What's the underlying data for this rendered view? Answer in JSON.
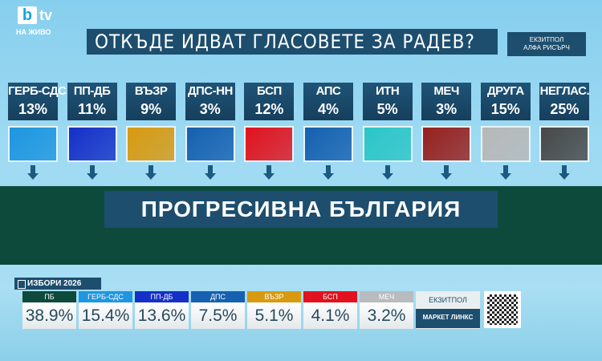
{
  "channel": {
    "logo_b": "b",
    "logo_tv": "tv",
    "live": "НА ЖИВО"
  },
  "header": {
    "title": "ОТКЪДЕ ИДВАТ ГЛАСОВЕТЕ ЗА РАДЕВ?",
    "source_line1": "ЕКЗИТПОЛ",
    "source_line2": "АЛФА РИСЪРЧ"
  },
  "sources": [
    {
      "name": "ГЕРБ-СДС",
      "pct": "13%",
      "color": "#1e96e0"
    },
    {
      "name": "ПП-ДБ",
      "pct": "11%",
      "color": "#1530c8"
    },
    {
      "name": "ВЪЗР",
      "pct": "9%",
      "color": "#d89a10"
    },
    {
      "name": "ДПС-НН",
      "pct": "3%",
      "color": "#1560b0"
    },
    {
      "name": "БСП",
      "pct": "12%",
      "color": "#e2121e"
    },
    {
      "name": "АПС",
      "pct": "4%",
      "color": "#1560b0"
    },
    {
      "name": "ИТН",
      "pct": "5%",
      "color": "#2cc6c8"
    },
    {
      "name": "МЕЧ",
      "pct": "3%",
      "color": "#98201e"
    },
    {
      "name": "ДРУГА",
      "pct": "15%",
      "color": "#b8b8b8"
    },
    {
      "name": "НЕГЛАС.",
      "pct": "25%",
      "color": "#484848"
    }
  ],
  "target": "ПРОГРЕСИВНА БЪЛГАРИЯ",
  "ticker": {
    "tab": "ИЗБОРИ 2026",
    "source1": "ЕКЗИТПОЛ",
    "source2": "МАРКЕТ ЛИНКС",
    "results": [
      {
        "name": "ПБ",
        "pct": "38.9%",
        "color": "#0d4a3b"
      },
      {
        "name": "ГЕРБ-СДС",
        "pct": "15.4%",
        "color": "#1e96e0"
      },
      {
        "name": "ПП-ДБ",
        "pct": "13.6%",
        "color": "#1530c8"
      },
      {
        "name": "ДПС",
        "pct": "7.5%",
        "color": "#1560b0"
      },
      {
        "name": "ВЪЗР",
        "pct": "5.1%",
        "color": "#d89a10"
      },
      {
        "name": "БСП",
        "pct": "4.1%",
        "color": "#e2121e"
      },
      {
        "name": "МЕЧ",
        "pct": "3.2%",
        "color": "#b8bcbf"
      }
    ]
  }
}
